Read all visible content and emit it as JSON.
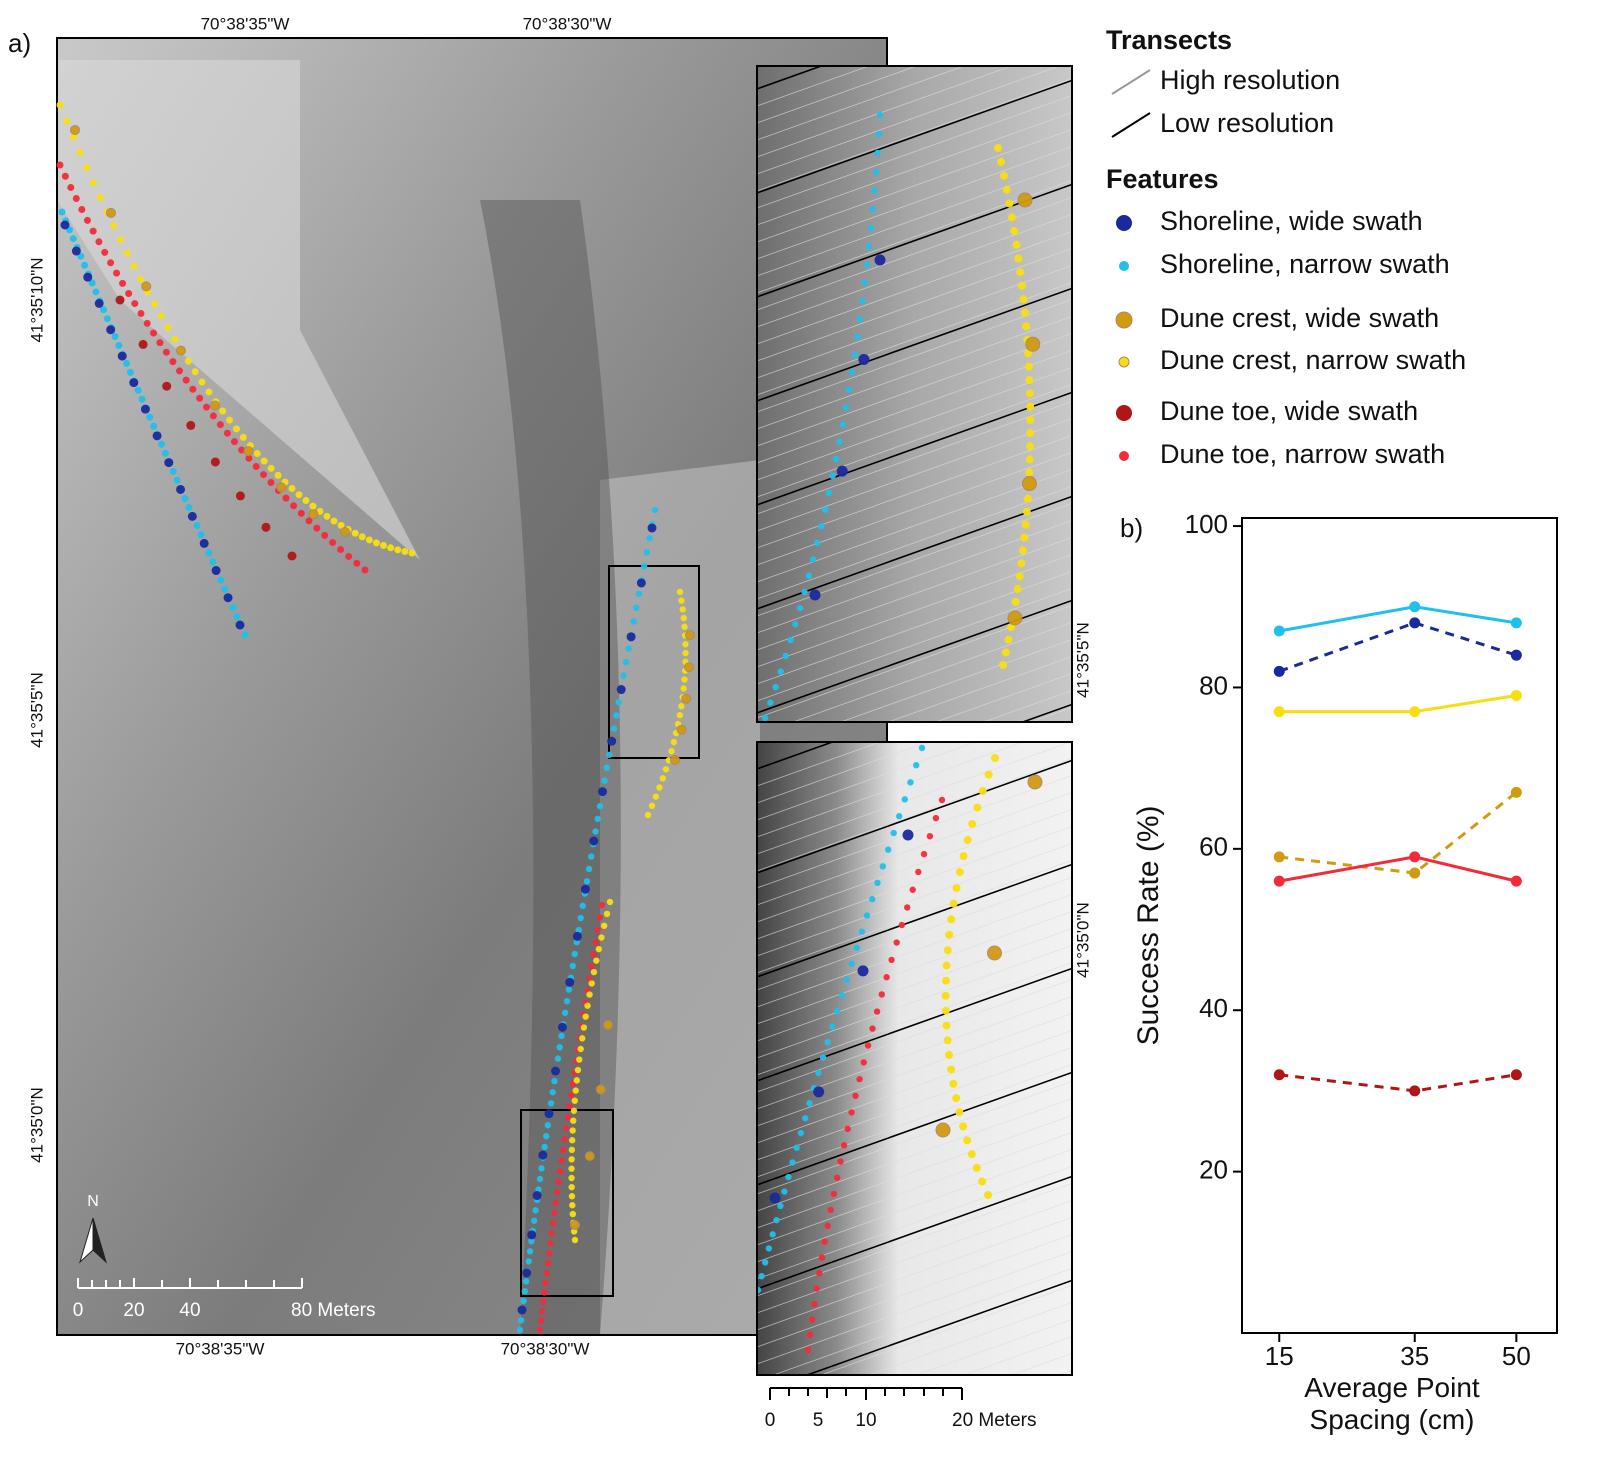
{
  "panel_labels": {
    "a": "a)",
    "b": "b)"
  },
  "map": {
    "top_longitudes": [
      "70°38'35\"W",
      "70°38'30\"W"
    ],
    "bottom_longitudes": [
      "70°38'35\"W",
      "70°38'30\"W"
    ],
    "left_latitudes": [
      "41°35'10\"N",
      "41°35'5\"N",
      "41°35'0\"N"
    ],
    "inset_latitudes": [
      "41°35'5\"N",
      "41°35'0\"N"
    ],
    "north_label": "N",
    "scale_labels": [
      "0",
      "20",
      "40",
      "80 Meters"
    ],
    "inset_scale_labels": [
      "0",
      "5",
      "10",
      "20 Meters"
    ]
  },
  "legend": {
    "transects_title": "Transects",
    "transects": [
      "High resolution",
      "Low resolution"
    ],
    "features_title": "Features"
  },
  "chart_data": {
    "type": "line",
    "x_label": "Average Point Spacing (cm)",
    "y_label": "Success Rate (%)",
    "x": [
      15,
      35,
      50
    ],
    "xlim": [
      9.5,
      56
    ],
    "xticks": [
      15,
      35,
      50
    ],
    "ylim": [
      0,
      101
    ],
    "yticks": [
      20,
      40,
      60,
      80,
      100
    ],
    "grid": false,
    "series": [
      {
        "name": "Shoreline, wide swath",
        "color": "#1a2a9c",
        "dashed": true,
        "values": [
          82,
          88,
          84
        ]
      },
      {
        "name": "Shoreline, narrow swath",
        "color": "#1ec0ec",
        "dashed": false,
        "values": [
          87,
          90,
          88
        ]
      },
      {
        "name": "Dune crest, wide swath",
        "color": "#d29a10",
        "dashed": true,
        "values": [
          59,
          57,
          67
        ]
      },
      {
        "name": "Dune crest, narrow swath",
        "color": "#f8de10",
        "dashed": false,
        "values": [
          77,
          77,
          79
        ]
      },
      {
        "name": "Dune toe, wide swath",
        "color": "#b01616",
        "dashed": true,
        "values": [
          32,
          30,
          32
        ]
      },
      {
        "name": "Dune toe, narrow swath",
        "color": "#f42a3a",
        "dashed": false,
        "values": [
          56,
          59,
          56
        ]
      }
    ]
  }
}
